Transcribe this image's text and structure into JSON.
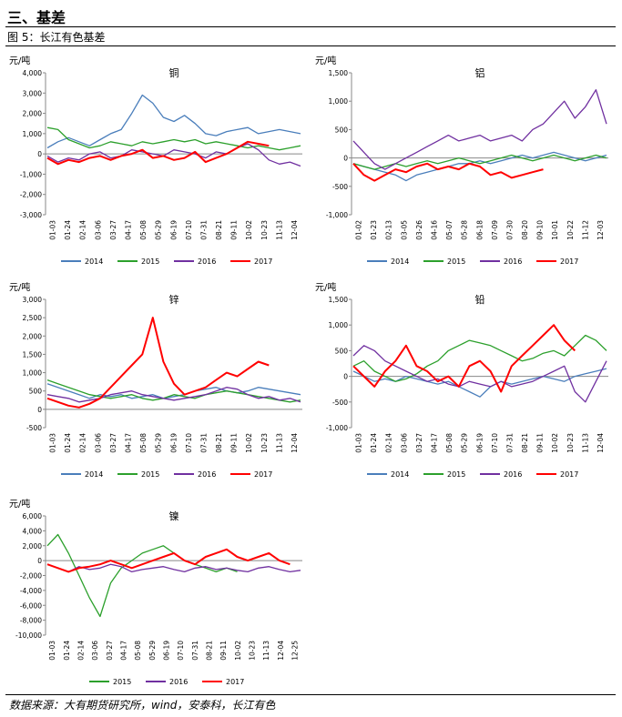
{
  "section_title": "三、基差",
  "figure_caption": "图 5：长江有色基差",
  "source_note": "数据来源：大有期货研究所，wind，安泰科，长江有色",
  "colors": {
    "2014": "#4a7ebb",
    "2015": "#2ca02c",
    "2016": "#7030a0",
    "2017": "#ff0000"
  },
  "chart_data": [
    {
      "type": "line",
      "title": "铜",
      "unit": "元/吨",
      "ylim": [
        -3000,
        4000
      ],
      "yticks": [
        "-3,000",
        "-2,000",
        "-1,000",
        "0",
        "1,000",
        "2,000",
        "3,000",
        "4,000"
      ],
      "xticks": [
        "01-03",
        "01-24",
        "02-14",
        "03-06",
        "03-27",
        "04-17",
        "05-08",
        "05-29",
        "06-19",
        "07-10",
        "07-31",
        "08-21",
        "09-11",
        "10-02",
        "10-23",
        "11-13",
        "12-04"
      ],
      "series": [
        {
          "name": "2014",
          "values": [
            300,
            600,
            800,
            600,
            400,
            700,
            1000,
            1200,
            2000,
            2900,
            2500,
            1800,
            1600,
            1900,
            1500,
            1000,
            900,
            1100,
            1200,
            1300,
            1000,
            1100,
            1200,
            1100,
            1000
          ]
        },
        {
          "name": "2015",
          "values": [
            1300,
            1200,
            700,
            500,
            300,
            400,
            600,
            500,
            400,
            600,
            500,
            600,
            700,
            600,
            700,
            500,
            600,
            500,
            400,
            300,
            400,
            300,
            200,
            300,
            400
          ]
        },
        {
          "name": "2016",
          "values": [
            -100,
            -400,
            -200,
            -300,
            0,
            100,
            -200,
            -100,
            200,
            100,
            0,
            -100,
            200,
            100,
            0,
            -200,
            100,
            0,
            300,
            500,
            200,
            -300,
            -500,
            -400,
            -600
          ]
        },
        {
          "name": "2017",
          "values": [
            -200,
            -500,
            -300,
            -400,
            -200,
            -100,
            -300,
            -100,
            0,
            200,
            -200,
            -100,
            -300,
            -200,
            100,
            -400,
            -200,
            0,
            300,
            600,
            500,
            400
          ]
        }
      ]
    },
    {
      "type": "line",
      "title": "铝",
      "unit": "元/吨",
      "ylim": [
        -1000,
        1500
      ],
      "yticks": [
        "-1,000",
        "-500",
        "0",
        "500",
        "1,000",
        "1,500"
      ],
      "xticks": [
        "01-02",
        "01-23",
        "02-13",
        "03-05",
        "03-26",
        "04-16",
        "05-07",
        "05-28",
        "06-18",
        "07-09",
        "07-30",
        "08-20",
        "09-10",
        "10-01",
        "10-22",
        "11-12",
        "12-03"
      ],
      "series": [
        {
          "name": "2014",
          "values": [
            -100,
            -150,
            -200,
            -250,
            -300,
            -400,
            -300,
            -250,
            -200,
            -150,
            -100,
            -100,
            -50,
            -100,
            -50,
            0,
            50,
            0,
            50,
            100,
            50,
            0,
            -50,
            0,
            50
          ]
        },
        {
          "name": "2015",
          "values": [
            -100,
            -150,
            -200,
            -150,
            -100,
            -150,
            -100,
            -50,
            -100,
            -50,
            0,
            -50,
            -100,
            -50,
            0,
            50,
            0,
            -50,
            0,
            50,
            0,
            -50,
            0,
            50,
            0
          ]
        },
        {
          "name": "2016",
          "values": [
            300,
            100,
            -100,
            -200,
            -100,
            0,
            100,
            200,
            300,
            400,
            300,
            350,
            400,
            300,
            350,
            400,
            300,
            500,
            600,
            800,
            1000,
            700,
            900,
            1200,
            600
          ]
        },
        {
          "name": "2017",
          "values": [
            -100,
            -300,
            -400,
            -300,
            -200,
            -250,
            -150,
            -100,
            -200,
            -150,
            -200,
            -100,
            -150,
            -300,
            -250,
            -350,
            -300,
            -250,
            -200
          ]
        }
      ]
    },
    {
      "type": "line",
      "title": "锌",
      "unit": "元/吨",
      "ylim": [
        -500,
        3000
      ],
      "yticks": [
        "-500",
        "0",
        "500",
        "1,000",
        "1,500",
        "2,000",
        "2,500",
        "3,000"
      ],
      "xticks": [
        "01-03",
        "01-24",
        "02-14",
        "03-06",
        "03-27",
        "04-17",
        "05-08",
        "05-29",
        "06-19",
        "07-10",
        "07-31",
        "08-21",
        "09-11",
        "10-02",
        "10-23",
        "11-13",
        "12-04"
      ],
      "series": [
        {
          "name": "2014",
          "values": [
            700,
            600,
            500,
            400,
            300,
            400,
            350,
            400,
            300,
            350,
            400,
            300,
            350,
            400,
            500,
            550,
            600,
            500,
            450,
            500,
            600,
            550,
            500,
            450,
            400
          ]
        },
        {
          "name": "2015",
          "values": [
            800,
            700,
            600,
            500,
            400,
            350,
            300,
            350,
            400,
            300,
            250,
            300,
            400,
            350,
            300,
            400,
            450,
            500,
            450,
            400,
            350,
            300,
            250,
            200,
            250
          ]
        },
        {
          "name": "2016",
          "values": [
            400,
            350,
            300,
            200,
            250,
            300,
            400,
            450,
            500,
            400,
            350,
            300,
            250,
            300,
            350,
            400,
            500,
            600,
            550,
            400,
            300,
            350,
            250,
            300,
            200
          ]
        },
        {
          "name": "2017",
          "values": [
            300,
            200,
            100,
            50,
            150,
            300,
            600,
            900,
            1200,
            1500,
            2500,
            1300,
            700,
            400,
            500,
            600,
            800,
            1000,
            900,
            1100,
            1300,
            1200
          ]
        }
      ]
    },
    {
      "type": "line",
      "title": "铅",
      "unit": "元/吨",
      "ylim": [
        -1000,
        1500
      ],
      "yticks": [
        "-1,000",
        "-500",
        "0",
        "500",
        "1,000",
        "1,500"
      ],
      "xticks": [
        "01-03",
        "01-24",
        "02-14",
        "03-06",
        "03-27",
        "04-17",
        "05-08",
        "05-29",
        "06-19",
        "07-10",
        "07-31",
        "08-21",
        "09-11",
        "10-02",
        "10-23",
        "11-13",
        "12-04"
      ],
      "series": [
        {
          "name": "2014",
          "values": [
            100,
            0,
            -100,
            -50,
            -100,
            0,
            -50,
            -100,
            -150,
            -100,
            -200,
            -300,
            -400,
            -200,
            -100,
            -150,
            -100,
            -50,
            0,
            -50,
            -100,
            0,
            50,
            100,
            150
          ]
        },
        {
          "name": "2015",
          "values": [
            200,
            300,
            100,
            0,
            -100,
            -50,
            50,
            200,
            300,
            500,
            600,
            700,
            650,
            600,
            500,
            400,
            300,
            350,
            450,
            500,
            400,
            600,
            800,
            700,
            500
          ]
        },
        {
          "name": "2016",
          "values": [
            400,
            600,
            500,
            300,
            200,
            100,
            0,
            -100,
            -50,
            -150,
            -200,
            -100,
            -150,
            -200,
            -100,
            -200,
            -150,
            -100,
            0,
            100,
            200,
            -300,
            -500,
            -100,
            300
          ]
        },
        {
          "name": "2017",
          "values": [
            200,
            0,
            -200,
            100,
            300,
            600,
            200,
            100,
            -100,
            0,
            -200,
            200,
            300,
            100,
            -300,
            200,
            400,
            600,
            800,
            1000,
            700,
            500
          ]
        }
      ]
    },
    {
      "type": "line",
      "title": "镍",
      "unit": "元/吨",
      "ylim": [
        -10000,
        6000
      ],
      "yticks": [
        "-10,000",
        "-8,000",
        "-6,000",
        "-4,000",
        "-2,000",
        "0",
        "2,000",
        "4,000",
        "6,000"
      ],
      "xticks": [
        "01-03",
        "01-24",
        "02-14",
        "03-06",
        "03-27",
        "04-17",
        "05-08",
        "05-29",
        "06-19",
        "07-10",
        "07-31",
        "08-21",
        "09-11",
        "10-02",
        "10-23",
        "11-13",
        "12-04",
        "12-25"
      ],
      "series": [
        {
          "name": "2015",
          "values": [
            2000,
            3500,
            1000,
            -2000,
            -5000,
            -7500,
            -3000,
            -1000,
            0,
            1000,
            1500,
            2000,
            1000,
            0,
            -500,
            -1000,
            -1500,
            -1000,
            -1500
          ]
        },
        {
          "name": "2016",
          "values": [
            -500,
            -1000,
            -1500,
            -800,
            -1200,
            -1000,
            -500,
            -800,
            -1500,
            -1200,
            -1000,
            -800,
            -1200,
            -1500,
            -1000,
            -800,
            -1200,
            -1000,
            -1300,
            -1500,
            -1000,
            -800,
            -1200,
            -1500,
            -1300
          ]
        },
        {
          "name": "2017",
          "values": [
            -500,
            -1000,
            -1500,
            -1000,
            -800,
            -500,
            0,
            -500,
            -1000,
            -500,
            0,
            500,
            1000,
            0,
            -500,
            500,
            1000,
            1500,
            500,
            0,
            500,
            1000,
            0,
            -500
          ]
        }
      ]
    }
  ]
}
